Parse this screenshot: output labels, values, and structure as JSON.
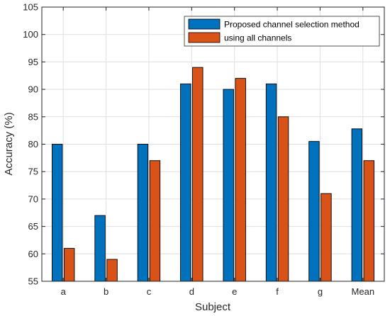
{
  "chart_data": {
    "type": "bar",
    "xlabel": "Subject",
    "ylabel": "Accuracy (%)",
    "categories": [
      "a",
      "b",
      "c",
      "d",
      "e",
      "f",
      "g",
      "Mean"
    ],
    "ylim": [
      55,
      105
    ],
    "yticks": [
      55,
      60,
      65,
      70,
      75,
      80,
      85,
      90,
      95,
      100,
      105
    ],
    "grid": true,
    "legend_position": "top-right",
    "series": [
      {
        "name": "Proposed channel selection method",
        "color": "#0072BD",
        "values": [
          80,
          67,
          80,
          91,
          90,
          91,
          80.5,
          82.8
        ]
      },
      {
        "name": "using all channels",
        "color": "#D95319",
        "values": [
          61,
          59,
          77,
          94,
          92,
          85,
          71,
          77
        ]
      }
    ]
  }
}
